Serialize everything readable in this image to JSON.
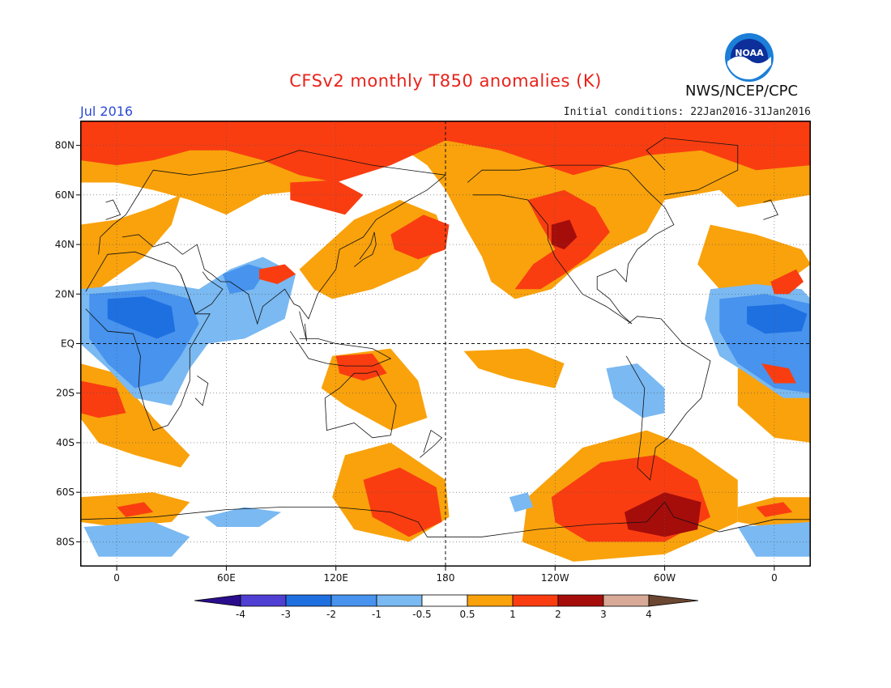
{
  "title": "CFSv2 monthly T850 anomalies (K)",
  "month": "Jul 2016",
  "initial_conditions": "Initial conditions: 22Jan2016-31Jan2016",
  "agency": "NWS/NCEP/CPC",
  "logo": {
    "text": "NOAA",
    "icon": "noaa-logo-icon"
  },
  "map": {
    "lat_labels": [
      "80N",
      "60N",
      "40N",
      "20N",
      "EQ",
      "20S",
      "40S",
      "60S",
      "80S"
    ],
    "lat_values": [
      80,
      60,
      40,
      20,
      0,
      -20,
      -40,
      -60,
      -80
    ],
    "lon_labels": [
      "0",
      "60E",
      "120E",
      "180",
      "120W",
      "60W",
      "0"
    ],
    "lon_values": [
      0,
      60,
      120,
      180,
      240,
      300,
      360
    ],
    "lon_range": [
      -20,
      380
    ],
    "lat_range": [
      -90,
      90
    ]
  },
  "colorbar": {
    "labels": [
      "-4",
      "-3",
      "-2",
      "-1",
      "-0.5",
      "0.5",
      "1",
      "2",
      "3",
      "4"
    ],
    "colors": [
      "#2a0d8c",
      "#4f3fd3",
      "#1e6fe0",
      "#4793ee",
      "#7ab9f2",
      "#ffffff",
      "#f9a20c",
      "#f93d11",
      "#a50d0b",
      "#d7a996",
      "#6b4630"
    ]
  },
  "palette": {
    "cool1": "#7ab9f2",
    "cool2": "#4793ee",
    "cool3": "#1e6fe0",
    "warm1": "#f9a20c",
    "warm2": "#f93d11",
    "warm3": "#a50d0b"
  }
}
